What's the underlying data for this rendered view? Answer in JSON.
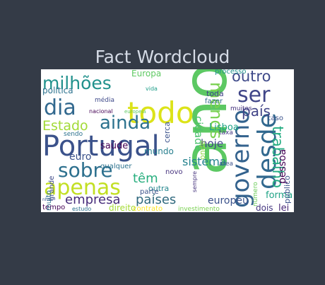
{
  "title": "Fact Wordcloud",
  "colors": {
    "background": "#343b47",
    "title": "#d5dbe6",
    "cloud_background": "#ffffff"
  },
  "words": [
    "ano",
    "todo",
    "Portugal",
    "desde",
    "governo",
    "apenas",
    "sobre",
    "dia",
    "ser",
    "milhões",
    "ainda",
    "menos",
    "outro",
    "trabalho",
    "país",
    "Estado",
    "empresa",
    "têm",
    "países",
    "sistema",
    "cidade",
    "euro",
    "saúde",
    "mundo",
    "hoje",
    "europeu",
    "política",
    "Lisboa",
    "pessoa",
    "forma",
    "lei",
    "dois",
    "direito",
    "contrato",
    "investimento",
    "processo",
    "toda",
    "fazer",
    "cerca",
    "grande",
    "qualquer",
    "outra",
    "novo",
    "parte",
    "tempo",
    "estudo",
    "média",
    "nacional",
    "europeia",
    "sendo",
    "muitos",
    "caso",
    "taxa",
    "área",
    "Europa",
    "vida",
    "sempre",
    "onde",
    "público",
    "muito",
    "nível",
    "número"
  ]
}
